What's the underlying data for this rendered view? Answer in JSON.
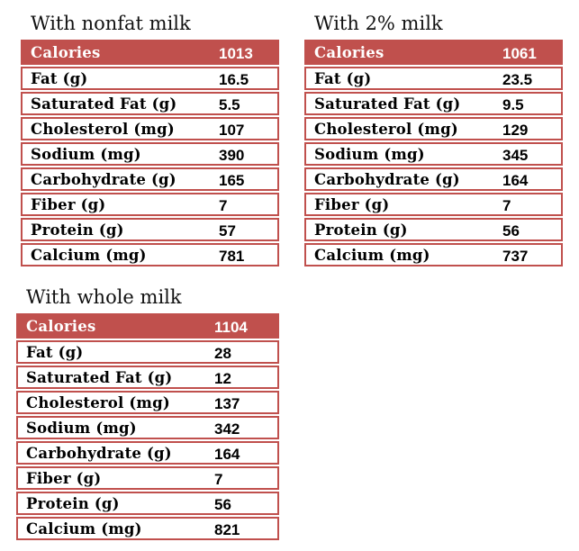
{
  "colors": {
    "accent_red": "#C0504D",
    "header_text": "#FFFFFF",
    "body_text": "#000000"
  },
  "tables": [
    {
      "title": "With nonfat milk",
      "header": {
        "label": "Calories",
        "value": "1013"
      },
      "rows": [
        {
          "label": "Fat (g)",
          "value": "16.5"
        },
        {
          "label": "Saturated Fat (g)",
          "value": "5.5"
        },
        {
          "label": "Cholesterol (mg)",
          "value": "107"
        },
        {
          "label": "Sodium (mg)",
          "value": "390"
        },
        {
          "label": "Carbohydrate (g)",
          "value": "165"
        },
        {
          "label": "Fiber (g)",
          "value": "7"
        },
        {
          "label": "Protein (g)",
          "value": "57"
        },
        {
          "label": "Calcium (mg)",
          "value": "781"
        }
      ]
    },
    {
      "title": "With 2% milk",
      "header": {
        "label": "Calories",
        "value": "1061"
      },
      "rows": [
        {
          "label": "Fat (g)",
          "value": "23.5"
        },
        {
          "label": "Saturated Fat (g)",
          "value": "9.5"
        },
        {
          "label": "Cholesterol (mg)",
          "value": "129"
        },
        {
          "label": "Sodium (mg)",
          "value": "345"
        },
        {
          "label": "Carbohydrate (g)",
          "value": "164"
        },
        {
          "label": "Fiber (g)",
          "value": "7"
        },
        {
          "label": "Protein (g)",
          "value": "56"
        },
        {
          "label": "Calcium (mg)",
          "value": "737"
        }
      ]
    },
    {
      "title": "With whole milk",
      "header": {
        "label": "Calories",
        "value": "1104"
      },
      "rows": [
        {
          "label": "Fat (g)",
          "value": "28"
        },
        {
          "label": "Saturated Fat (g)",
          "value": "12"
        },
        {
          "label": "Cholesterol (mg)",
          "value": "137"
        },
        {
          "label": "Sodium (mg)",
          "value": "342"
        },
        {
          "label": "Carbohydrate (g)",
          "value": "164"
        },
        {
          "label": "Fiber (g)",
          "value": "7"
        },
        {
          "label": "Protein (g)",
          "value": "56"
        },
        {
          "label": "Calcium (mg)",
          "value": "821"
        }
      ]
    }
  ]
}
